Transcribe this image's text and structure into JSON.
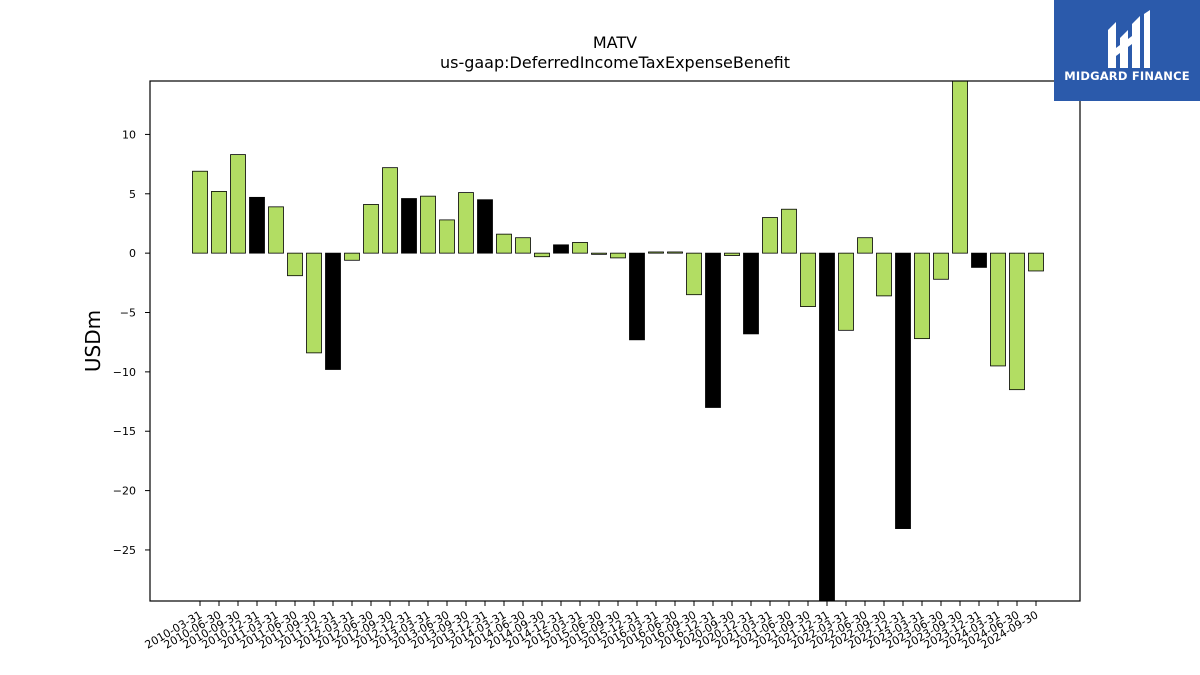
{
  "logo": {
    "text": "MIDGARD FINANCE",
    "background": "#2b5aab"
  },
  "colors": {
    "bar_normal": "#b2dd63",
    "bar_q4": "#000000"
  },
  "chart_data": {
    "type": "bar",
    "title": "MATV",
    "subtitle": "us-gaap:DeferredIncomeTaxExpenseBenefit",
    "xlabel": "",
    "ylabel": "USDm",
    "ylim": [
      -29.3,
      14.5
    ],
    "yticks": [
      10,
      5,
      0,
      -5,
      -10,
      -15,
      -20,
      -25
    ],
    "ytick_labels": [
      "10",
      "5",
      "0",
      "−5",
      "−10",
      "−15",
      "−20",
      "−25"
    ],
    "grid": false,
    "legend": "none",
    "categories": [
      "2010-03-31",
      "2010-06-30",
      "2010-09-30",
      "2010-12-31",
      "2011-03-31",
      "2011-06-30",
      "2011-09-30",
      "2011-12-31",
      "2012-03-31",
      "2012-06-30",
      "2012-09-30",
      "2012-12-31",
      "2013-03-31",
      "2013-06-30",
      "2013-09-30",
      "2013-12-31",
      "2014-03-31",
      "2014-06-30",
      "2014-09-30",
      "2014-12-31",
      "2015-03-31",
      "2015-06-30",
      "2015-09-30",
      "2015-12-31",
      "2016-03-31",
      "2016-06-30",
      "2016-09-30",
      "2016-12-31",
      "2020-09-30",
      "2020-12-31",
      "2021-03-31",
      "2021-06-30",
      "2021-09-30",
      "2021-12-31",
      "2022-03-31",
      "2022-06-30",
      "2022-09-30",
      "2022-12-31",
      "2023-03-31",
      "2023-06-30",
      "2023-09-30",
      "2023-12-31",
      "2024-03-31",
      "2024-06-30",
      "2024-09-30"
    ],
    "values": [
      6.9,
      5.2,
      8.3,
      4.7,
      3.9,
      -1.9,
      -8.4,
      -9.8,
      -0.6,
      4.1,
      7.2,
      4.6,
      4.8,
      2.8,
      5.1,
      4.5,
      1.6,
      1.3,
      -0.3,
      0.7,
      0.9,
      -0.1,
      -0.4,
      -7.3,
      0.1,
      0.1,
      -3.5,
      -13.0,
      -0.2,
      -6.8,
      3.0,
      3.7,
      -4.5,
      -29.3,
      -6.5,
      1.3,
      -3.6,
      -23.2,
      -7.2,
      -2.2,
      14.5,
      -1.2,
      -9.5,
      -11.5,
      -1.5
    ],
    "q4_flags": [
      false,
      false,
      false,
      true,
      false,
      false,
      false,
      true,
      false,
      false,
      false,
      true,
      false,
      false,
      false,
      true,
      false,
      false,
      false,
      true,
      false,
      false,
      false,
      true,
      false,
      false,
      false,
      true,
      false,
      true,
      false,
      false,
      false,
      true,
      false,
      false,
      false,
      true,
      false,
      false,
      false,
      true,
      false,
      false,
      false
    ]
  }
}
